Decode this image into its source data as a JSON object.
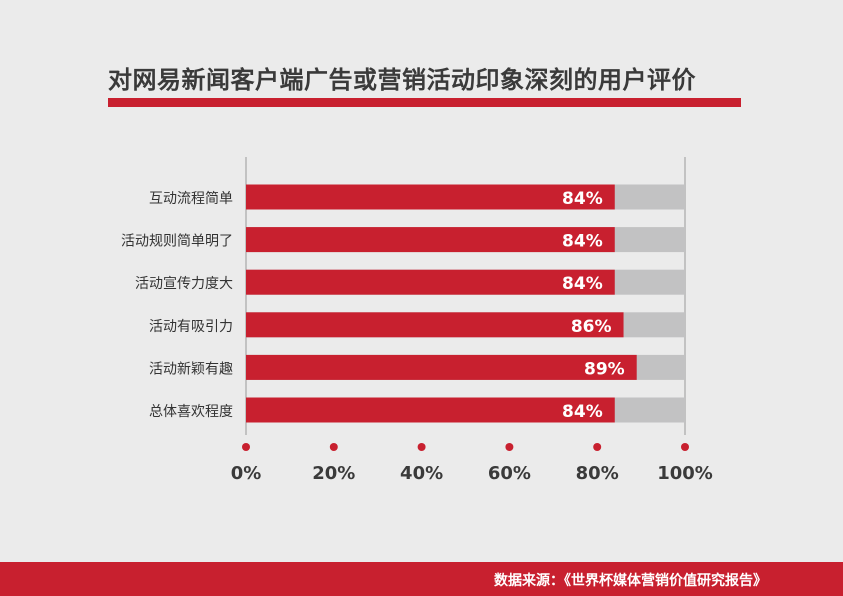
{
  "title": "对网易新闻客户端广告或营销活动印象深刻的用户评价",
  "footer": {
    "source": "数据来源：《世界杯媒体营销价值研究报告》"
  },
  "colors": {
    "bar": "#c8202f",
    "track": "#c2c2c3",
    "background": "#ebebeb",
    "title_bar": "#c8202f"
  },
  "chart_data": {
    "type": "bar",
    "orientation": "horizontal",
    "categories": [
      "互动流程简单",
      "活动规则简单明了",
      "活动宣传力度大",
      "活动有吸引力",
      "活动新颖有趣",
      "总体喜欢程度"
    ],
    "values": [
      84,
      84,
      84,
      86,
      89,
      84
    ],
    "value_labels": [
      "84%",
      "84%",
      "84%",
      "86%",
      "89%",
      "84%"
    ],
    "xlim": [
      0,
      100
    ],
    "x_ticks": [
      0,
      20,
      40,
      60,
      80,
      100
    ],
    "x_tick_labels": [
      "0%",
      "20%",
      "40%",
      "60%",
      "80%",
      "100%"
    ],
    "xlabel": "",
    "ylabel": "",
    "grid": false
  }
}
